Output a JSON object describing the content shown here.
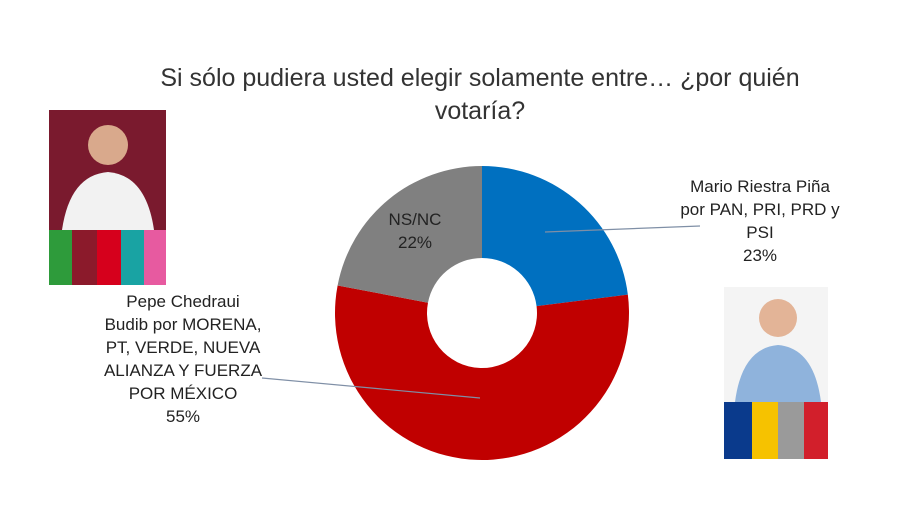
{
  "chart_data": {
    "type": "donut",
    "title": "Si sólo pudiera usted elegir solamente entre… ¿por quién votaría?",
    "categories": [
      "Mario Riestra Piña por PAN, PRI, PRD y PSI",
      "Pepe Chedraui Budib por MORENA, PT, VERDE, NUEVA ALIANZA Y FUERZA POR MÉXICO",
      "NS/NC"
    ],
    "values": [
      23,
      55,
      22
    ],
    "value_labels": [
      "23%",
      "55%",
      "22%"
    ],
    "colors": [
      "#0070c0",
      "#c00000",
      "#808080"
    ]
  }
}
